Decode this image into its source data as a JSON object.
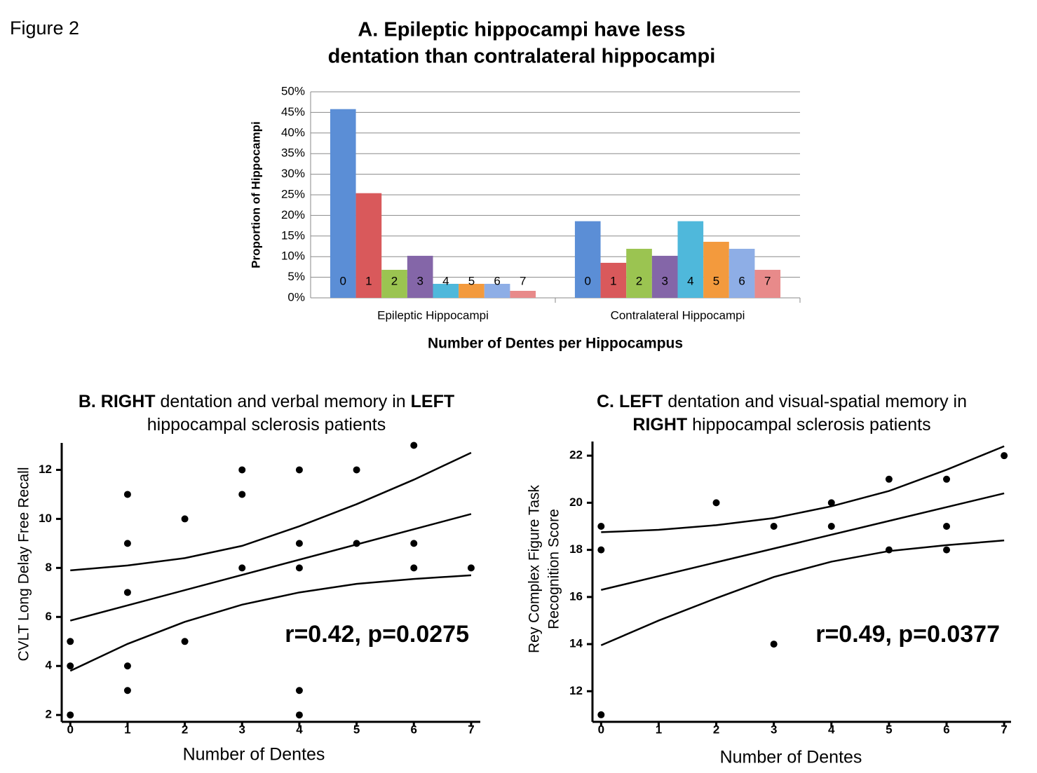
{
  "figure_label": "Figure 2",
  "chart_data": [
    {
      "type": "bar",
      "title": [
        "A. Epileptic hippocampi have less",
        "dentation than contralateral hippocampi"
      ],
      "x_label": "Number of Dentes per Hippocampus",
      "y_label": "Proportion of Hippocampi",
      "categories": [
        "Epileptic Hippocampi",
        "Contralateral Hippocampi"
      ],
      "series": [
        {
          "name": "0",
          "color": "#5b8ed6",
          "values": [
            45.8,
            18.6
          ]
        },
        {
          "name": "1",
          "color": "#d9595b",
          "values": [
            25.4,
            8.5
          ]
        },
        {
          "name": "2",
          "color": "#9bc451",
          "values": [
            6.8,
            11.9
          ]
        },
        {
          "name": "3",
          "color": "#8466a8",
          "values": [
            10.2,
            10.2
          ]
        },
        {
          "name": "4",
          "color": "#4fb8db",
          "values": [
            3.4,
            18.6
          ]
        },
        {
          "name": "5",
          "color": "#f39a3d",
          "values": [
            3.4,
            13.6
          ]
        },
        {
          "name": "6",
          "color": "#8eaee6",
          "values": [
            3.4,
            11.9
          ]
        },
        {
          "name": "7",
          "color": "#e88a8a",
          "values": [
            1.7,
            6.8
          ]
        }
      ],
      "ylim": [
        0,
        50
      ],
      "yticks": [
        {
          "value": 0,
          "label": "0%"
        },
        {
          "value": 5,
          "label": "5%"
        },
        {
          "value": 10,
          "label": "10%"
        },
        {
          "value": 15,
          "label": "15%"
        },
        {
          "value": 20,
          "label": "20%"
        },
        {
          "value": 25,
          "label": "25%"
        },
        {
          "value": 30,
          "label": "30%"
        },
        {
          "value": 35,
          "label": "35%"
        },
        {
          "value": 40,
          "label": "40%"
        },
        {
          "value": 45,
          "label": "45%"
        },
        {
          "value": 50,
          "label": "50%"
        }
      ],
      "grid": true
    },
    {
      "type": "scatter",
      "title": [
        [
          {
            "text": "B. RIGHT",
            "bold": true
          },
          {
            "text": " dentation and verbal memory in ",
            "bold": false
          },
          {
            "text": "LEFT",
            "bold": true
          }
        ],
        [
          {
            "text": "hippocampal sclerosis patients",
            "bold": false
          }
        ]
      ],
      "x_label": "Number of Dentes",
      "y_label": "CVLT Long Delay Free Recall",
      "annotation": "r=0.42, p=0.0275",
      "series": [
        {
          "mode": "markers",
          "color": "#000000",
          "x": [
            0,
            0,
            0,
            1,
            1,
            1,
            1,
            1,
            2,
            2,
            3,
            3,
            3,
            4,
            4,
            4,
            4,
            4,
            5,
            5,
            6,
            6,
            6,
            7
          ],
          "y": [
            5,
            4,
            2,
            11,
            9,
            7,
            4,
            3,
            10,
            5,
            12,
            11,
            8,
            12,
            9,
            8,
            3,
            2,
            12,
            9,
            13,
            9,
            8,
            8
          ]
        },
        {
          "mode": "line",
          "color": "#000000",
          "x": [
            0,
            7
          ],
          "y": [
            5.85,
            10.2
          ]
        },
        {
          "mode": "line",
          "color": "#000000",
          "x": [
            0,
            1,
            2,
            3,
            4,
            5,
            6,
            7
          ],
          "y": [
            7.9,
            8.1,
            8.4,
            8.9,
            9.7,
            10.6,
            11.6,
            12.7
          ]
        },
        {
          "mode": "line",
          "color": "#000000",
          "x": [
            0,
            1,
            2,
            3,
            4,
            5,
            6,
            7
          ],
          "y": [
            3.8,
            4.9,
            5.8,
            6.5,
            7.0,
            7.35,
            7.55,
            7.7
          ]
        }
      ],
      "xlim": [
        -0.15,
        7.16
      ],
      "xticks": [
        0,
        1,
        2,
        3,
        4,
        5,
        6,
        7
      ],
      "ylim": [
        1.72,
        13.1
      ],
      "yticks": [
        2,
        4,
        6,
        8,
        10,
        12
      ]
    },
    {
      "type": "scatter",
      "title": [
        [
          {
            "text": "C. LEFT",
            "bold": true
          },
          {
            "text": " dentation and visual-spatial memory in",
            "bold": false
          }
        ],
        [
          {
            "text": "RIGHT",
            "bold": true
          },
          {
            "text": " hippocampal sclerosis patients",
            "bold": false
          }
        ]
      ],
      "x_label": "Number of Dentes",
      "y_label": [
        "Rey Complex Figure Task",
        "Recognition Score"
      ],
      "annotation": "r=0.49, p=0.0377",
      "series": [
        {
          "mode": "markers",
          "color": "#000000",
          "x": [
            0,
            0,
            0,
            2,
            3,
            3,
            4,
            4,
            5,
            5,
            6,
            6,
            6,
            7
          ],
          "y": [
            19,
            18,
            11,
            20,
            19,
            14,
            20,
            19,
            21,
            18,
            21,
            19,
            18,
            22
          ]
        },
        {
          "mode": "line",
          "color": "#000000",
          "x": [
            0,
            7
          ],
          "y": [
            16.3,
            20.4
          ]
        },
        {
          "mode": "line",
          "color": "#000000",
          "x": [
            0,
            1,
            2,
            3,
            4,
            5,
            6,
            7
          ],
          "y": [
            18.75,
            18.85,
            19.05,
            19.35,
            19.85,
            20.5,
            21.4,
            22.4
          ]
        },
        {
          "mode": "line",
          "color": "#000000",
          "x": [
            0,
            1,
            2,
            3,
            4,
            5,
            6,
            7
          ],
          "y": [
            13.95,
            15.0,
            15.95,
            16.85,
            17.5,
            17.95,
            18.2,
            18.4
          ]
        }
      ],
      "xlim": [
        -0.15,
        7.12
      ],
      "xticks": [
        0,
        1,
        2,
        3,
        4,
        5,
        6,
        7
      ],
      "ylim": [
        10.7,
        22.6
      ],
      "yticks": [
        12,
        14,
        16,
        18,
        20,
        22
      ]
    }
  ]
}
